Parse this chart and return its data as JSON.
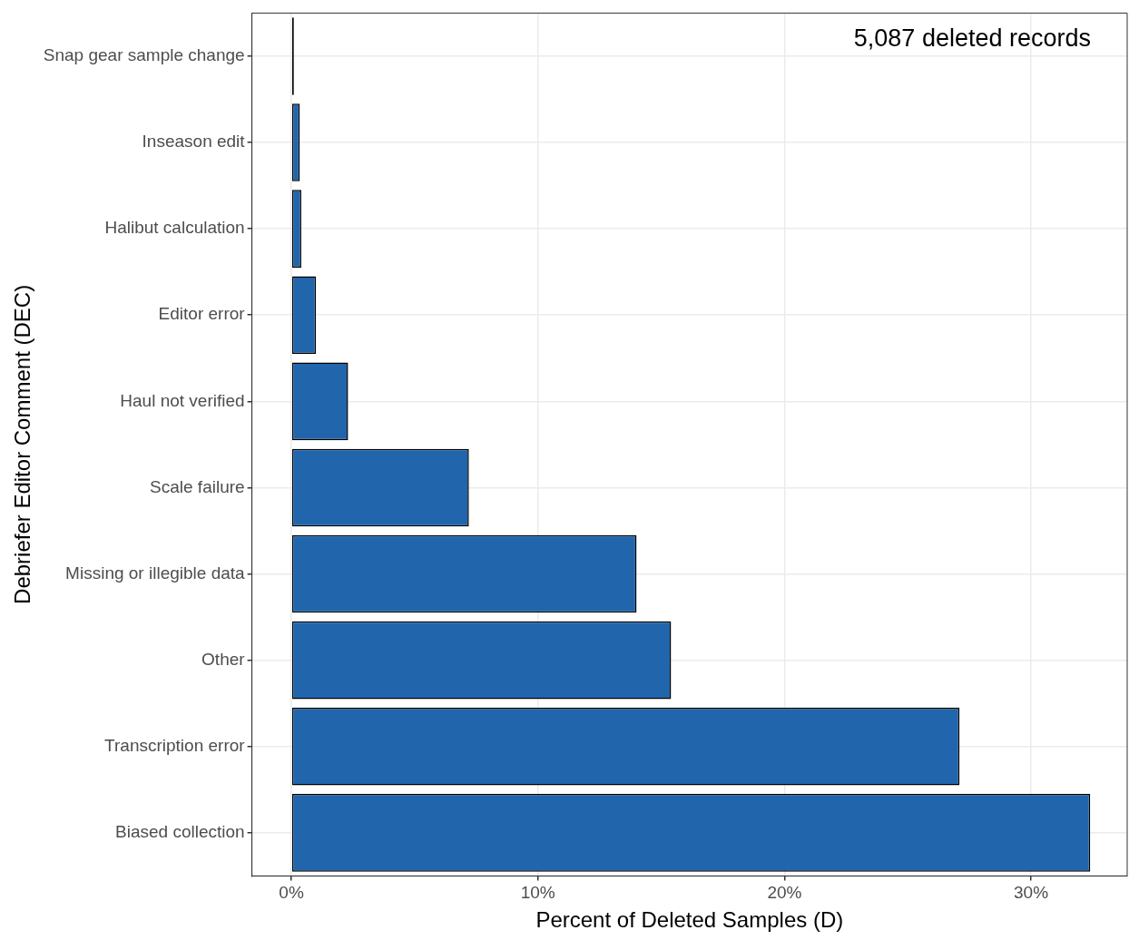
{
  "chart_data": {
    "type": "bar",
    "orientation": "horizontal",
    "categories": [
      "Snap gear sample change",
      "Inseason edit",
      "Halibut calculation",
      "Editor error",
      "Haul not verified",
      "Scale failure",
      "Missing or illegible data",
      "Other",
      "Transcription error",
      "Biased collection"
    ],
    "values": [
      0.1,
      0.34,
      0.4,
      1.0,
      2.3,
      7.2,
      14.0,
      15.4,
      27.1,
      32.4
    ],
    "colors": [
      "#000000",
      "#2166ac",
      "#2166ac",
      "#2166ac",
      "#2166ac",
      "#2166ac",
      "#2166ac",
      "#2166ac",
      "#2166ac",
      "#2166ac"
    ],
    "xlim": [
      -1.6,
      33.9
    ],
    "xticks": [
      {
        "value": 0,
        "label": "0%"
      },
      {
        "value": 10,
        "label": "10%"
      },
      {
        "value": 20,
        "label": "20%"
      },
      {
        "value": 30,
        "label": "30%"
      }
    ],
    "xlabel": "Percent of Deleted Samples (D)",
    "ylabel": "Debriefer Editor Comment (DEC)",
    "annotations": [
      "5,087 deleted records"
    ],
    "grid": true,
    "legend": false
  }
}
